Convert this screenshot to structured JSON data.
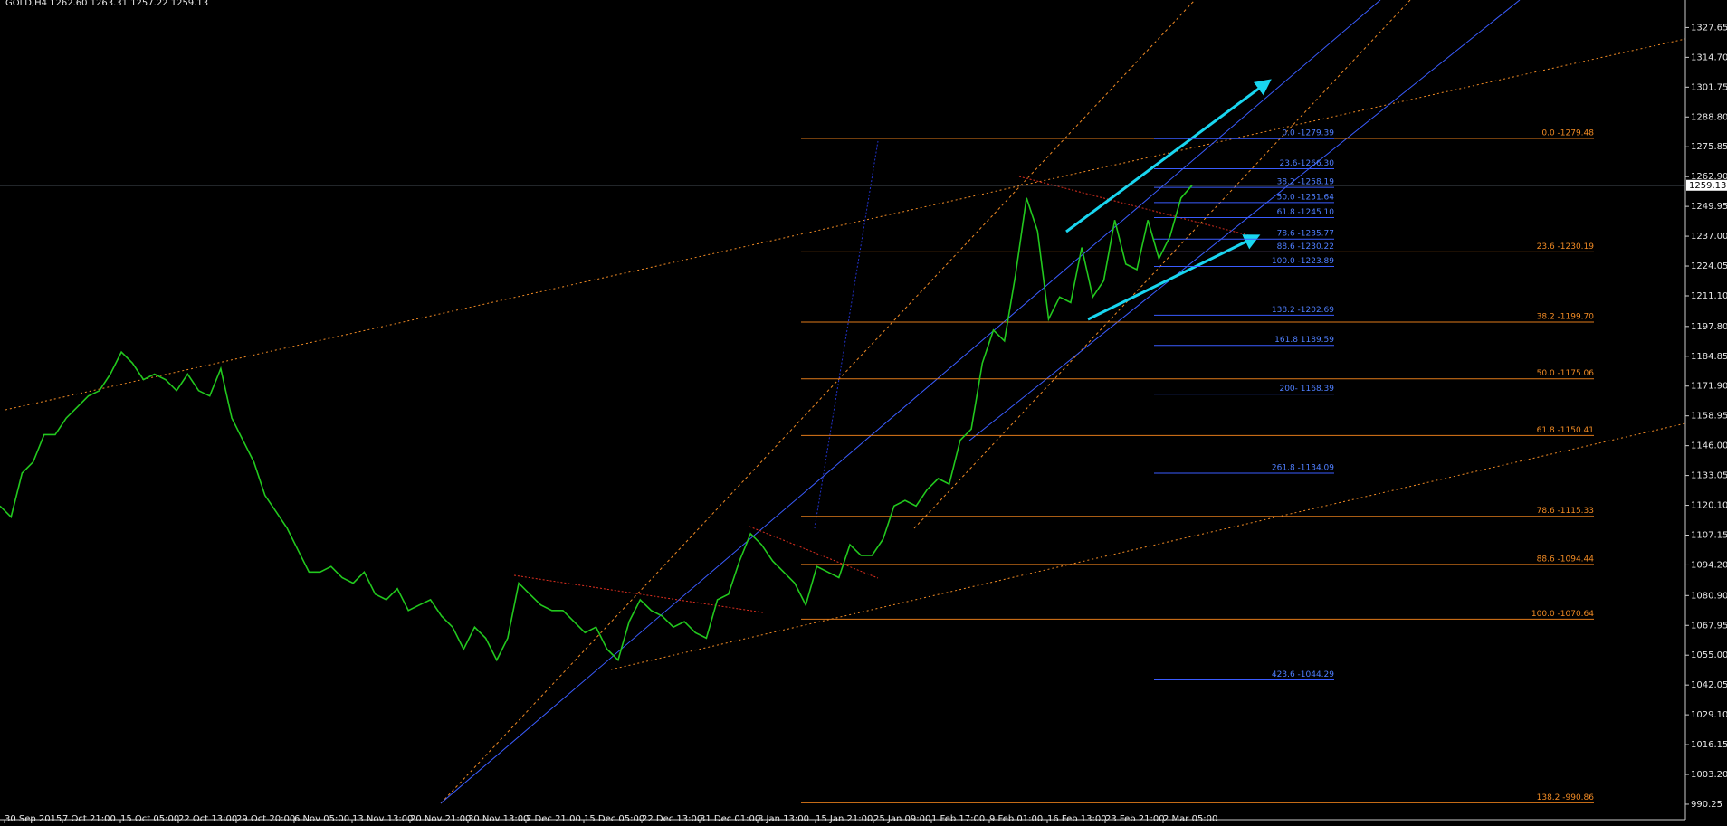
{
  "chart_data": {
    "type": "line",
    "title": "GOLD,H4 1262.60 1263.31 1257.22 1259.13",
    "x_labels": [
      "30 Sep 2015",
      "7 Oct 21:00",
      "15 Oct 05:00",
      "22 Oct 13:00",
      "29 Oct 20:00",
      "6 Nov 05:00",
      "13 Nov 13:00",
      "20 Nov 21:00",
      "30 Nov 13:00",
      "7 Dec 21:00",
      "15 Dec 05:00",
      "22 Dec 13:00",
      "31 Dec 01:00",
      "8 Jan 13:00",
      "15 Jan 21:00",
      "25 Jan 09:00",
      "1 Feb 17:00",
      "9 Feb 01:00",
      "16 Feb 13:00",
      "23 Feb 21:00",
      "2 Mar 05:00"
    ],
    "series": [
      {
        "color": "#22c81e",
        "values": [
          1119.8,
          1115.0,
          1134.1,
          1138.9,
          1150.8,
          1150.8,
          1158.0,
          1162.8,
          1167.6,
          1169.9,
          1177.1,
          1186.7,
          1181.9,
          1174.7,
          1177.1,
          1174.7,
          1169.9,
          1177.1,
          1169.9,
          1167.6,
          1179.5,
          1158.0,
          1148.4,
          1138.9,
          1124.5,
          1117.4,
          1110.2,
          1100.6,
          1091.1,
          1091.1,
          1093.5,
          1088.7,
          1086.3,
          1091.1,
          1081.5,
          1079.1,
          1083.9,
          1074.4,
          1076.8,
          1079.1,
          1072.0,
          1067.2,
          1057.6,
          1067.2,
          1062.4,
          1052.9,
          1062.4,
          1086.3,
          1081.5,
          1076.8,
          1074.4,
          1074.4,
          1069.6,
          1064.8,
          1067.2,
          1057.6,
          1052.9,
          1069.6,
          1079.1,
          1074.4,
          1072.0,
          1067.2,
          1069.6,
          1064.8,
          1062.4,
          1079.1,
          1081.5,
          1095.9,
          1107.8,
          1103.0,
          1095.9,
          1091.1,
          1086.3,
          1076.8,
          1093.5,
          1091.1,
          1088.7,
          1103.0,
          1098.3,
          1098.3,
          1105.4,
          1119.8,
          1122.2,
          1119.8,
          1126.9,
          1131.7,
          1129.3,
          1148.4,
          1153.2,
          1181.9,
          1196.2,
          1191.5,
          1220.1,
          1253.6,
          1239.2,
          1201.0,
          1210.6,
          1208.2,
          1232.1,
          1210.6,
          1217.7,
          1244.0,
          1224.9,
          1222.5,
          1244.0,
          1227.3,
          1236.9,
          1253.6,
          1259.1
        ]
      }
    ],
    "ylim": [
      983.56,
      1339.6
    ],
    "yticks": [
      1327.65,
      {
        "value": 1314.7,
        "label": "1314.70"
      },
      1301.75,
      {
        "value": 1288.8,
        "label": "1288.80"
      },
      1275.85,
      {
        "value": 1262.9,
        "label": "1262.90"
      },
      1249.95,
      {
        "value": 1237,
        "label": "1237.00"
      },
      1224.05,
      {
        "value": 1211.1,
        "label": "1211.10"
      },
      {
        "value": 1197.8,
        "label": "1197.80"
      },
      1184.85,
      {
        "value": 1171.9,
        "label": "1171.90"
      },
      1158.95,
      {
        "value": 1146,
        "label": "1146.00"
      },
      1133.05,
      {
        "value": 1120.1,
        "label": "1120.10"
      },
      1107.15,
      {
        "value": 1094.2,
        "label": "1094.20"
      },
      {
        "value": 1080.9,
        "label": "1080.90"
      },
      1067.95,
      {
        "value": 1055,
        "label": "1055.00"
      },
      1042.05,
      {
        "value": 1029.1,
        "label": "1029.10"
      },
      1016.15,
      {
        "value": 1003.2,
        "label": "1003.20"
      },
      990.25
    ],
    "current_price": 1259.13,
    "fib_orange": [
      {
        "label": "0.0 -1279.48",
        "value": 1279.48
      },
      {
        "label": "23.6 -1230.19",
        "value": 1230.19
      },
      {
        "label": "38.2 -1199.70",
        "value": 1199.7
      },
      {
        "label": "50.0 -1175.06",
        "value": 1175.06
      },
      {
        "label": "61.8 -1150.41",
        "value": 1150.41
      },
      {
        "label": "78.6 -1115.33",
        "value": 1115.33
      },
      {
        "label": "88.6 -1094.44",
        "value": 1094.44
      },
      {
        "label": "100.0 -1070.64",
        "value": 1070.64
      },
      {
        "label": "138.2 -990.86",
        "value": 990.86
      }
    ],
    "fib_blue": [
      {
        "label": "0.0 -1279.39",
        "value": 1279.39
      },
      {
        "label": "23.6-1266.30",
        "value": 1266.3
      },
      {
        "label": "38.2 -1258.19",
        "value": 1258.19
      },
      {
        "label": "50.0 -1251.64",
        "value": 1251.64
      },
      {
        "label": "61.8 -1245.10",
        "value": 1245.1
      },
      {
        "label": "78.6 -1235.77",
        "value": 1235.77
      },
      {
        "label": "88.6 -1230.22",
        "value": 1230.22
      },
      {
        "label": "100.0 -1223.89",
        "value": 1223.89
      },
      {
        "label": "138.2 -1202.69",
        "value": 1202.69
      },
      {
        "label": "161.8 1189.59",
        "value": 1189.59
      },
      {
        "label": "200- 1168.39",
        "value": 1168.39
      },
      {
        "label": "261.8 -1134.09",
        "value": 1134.09
      },
      {
        "label": "423.6 -1044.29",
        "value": 1044.29
      }
    ]
  }
}
